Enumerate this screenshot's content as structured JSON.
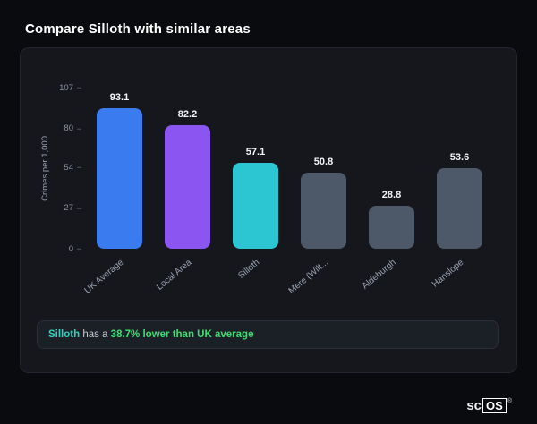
{
  "page": {
    "title": "Compare Silloth with similar areas"
  },
  "chart_data": {
    "type": "bar",
    "title": "",
    "xlabel": "",
    "ylabel": "Crimes per 1,000",
    "categories": [
      "UK Average",
      "Local Area",
      "Silloth",
      "Mere (Wilt...",
      "Aldeburgh",
      "Hanslope"
    ],
    "values": [
      93.1,
      82.2,
      57.1,
      50.8,
      28.8,
      53.6
    ],
    "value_labels": [
      "93.1",
      "82.2",
      "57.1",
      "50.8",
      "28.8",
      "53.6"
    ],
    "colors": [
      "#3b7bf0",
      "#8a55f0",
      "#2cc5d2",
      "#4d5868",
      "#4d5868",
      "#4d5868"
    ],
    "yticks": [
      0,
      27,
      54,
      80,
      107
    ],
    "ylim": [
      0,
      107
    ],
    "grid": false,
    "legend": false
  },
  "footer": {
    "subject": "Silloth",
    "middle": " has a ",
    "highlight": "38.7% lower than UK average"
  },
  "logo": {
    "prefix": "sc",
    "box": "OS",
    "reg": "®"
  },
  "theme": {
    "background": "#0a0b0e",
    "card_background": "#15171d",
    "accent_teal": "#2dd4bf",
    "accent_green": "#3ddc73",
    "text_primary": "#ffffff",
    "text_muted": "#9aa3b2"
  }
}
